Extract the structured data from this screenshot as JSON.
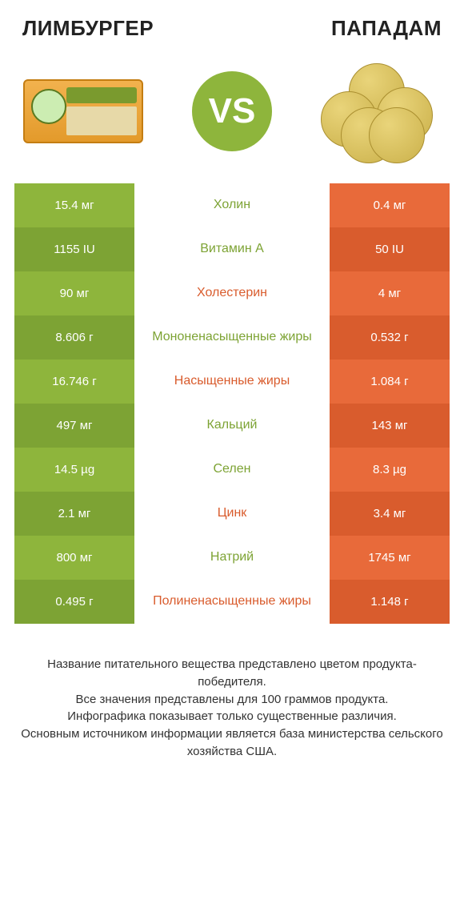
{
  "colors": {
    "green": "#8eb53c",
    "green_dark": "#7da334",
    "orange": "#e86a3a",
    "orange_dark": "#d95c2d",
    "text_green": "#7da334",
    "text_orange": "#d95c2d"
  },
  "header": {
    "left": "ЛИМБУРГЕР",
    "right": "ПАПАДАМ"
  },
  "vs_label": "VS",
  "rows": [
    {
      "left": "15.4 мг",
      "label": "Холин",
      "right": "0.4 мг",
      "winner": "left"
    },
    {
      "left": "1155 IU",
      "label": "Витамин A",
      "right": "50 IU",
      "winner": "left"
    },
    {
      "left": "90 мг",
      "label": "Холестерин",
      "right": "4 мг",
      "winner": "right"
    },
    {
      "left": "8.606 г",
      "label": "Мононенасыщенные жиры",
      "right": "0.532 г",
      "winner": "left"
    },
    {
      "left": "16.746 г",
      "label": "Насыщенные жиры",
      "right": "1.084 г",
      "winner": "right"
    },
    {
      "left": "497 мг",
      "label": "Кальций",
      "right": "143 мг",
      "winner": "left"
    },
    {
      "left": "14.5 µg",
      "label": "Селен",
      "right": "8.3 µg",
      "winner": "left"
    },
    {
      "left": "2.1 мг",
      "label": "Цинк",
      "right": "3.4 мг",
      "winner": "right"
    },
    {
      "left": "800 мг",
      "label": "Натрий",
      "right": "1745 мг",
      "winner": "left"
    },
    {
      "left": "0.495 г",
      "label": "Полиненасыщенные жиры",
      "right": "1.148 г",
      "winner": "right"
    }
  ],
  "footer_lines": [
    "Название питательного вещества представлено цветом продукта-победителя.",
    "Все значения представлены для 100 граммов продукта.",
    "Инфографика показывает только существенные различия.",
    "Основным источником информации является база министерства сельского хозяйства США."
  ]
}
